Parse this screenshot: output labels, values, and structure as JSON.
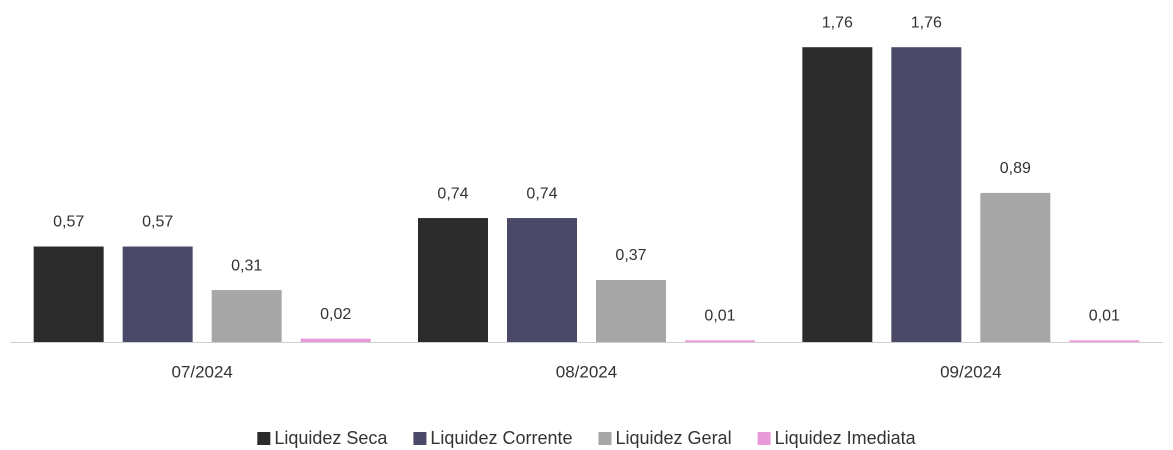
{
  "chart_data": {
    "type": "bar",
    "categories": [
      "07/2024",
      "08/2024",
      "09/2024"
    ],
    "series": [
      {
        "name": "Liquidez Seca",
        "color": "#2b2b2b",
        "values": [
          0.57,
          0.74,
          1.76
        ],
        "value_labels": [
          "0,57",
          "0,74",
          "1,76"
        ]
      },
      {
        "name": "Liquidez Corrente",
        "color": "#4a4a68",
        "values": [
          0.57,
          0.74,
          1.76
        ],
        "value_labels": [
          "0,57",
          "0,74",
          "1,76"
        ]
      },
      {
        "name": "Liquidez Geral",
        "color": "#a6a6a6",
        "values": [
          0.31,
          0.37,
          0.89
        ],
        "value_labels": [
          "0,31",
          "0,37",
          "0,89"
        ]
      },
      {
        "name": "Liquidez Imediata",
        "color": "#e89ad8",
        "values": [
          0.02,
          0.01,
          0.01
        ],
        "value_labels": [
          "0,02",
          "0,01",
          "0,01"
        ]
      }
    ],
    "ylim": [
      0,
      2
    ],
    "legend": "bottom"
  }
}
